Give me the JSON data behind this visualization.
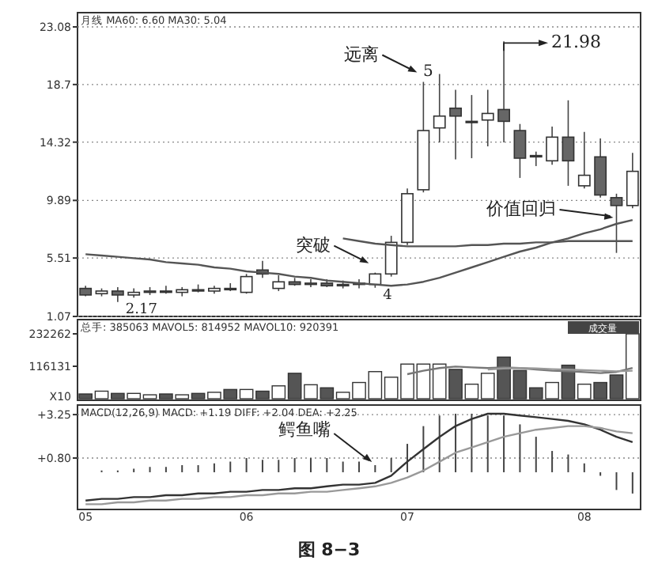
{
  "chart_data": [
    {
      "type": "candlestick",
      "categories": [
        null,
        null,
        null,
        null,
        null,
        null,
        null,
        null,
        null,
        null,
        null,
        null,
        null,
        null,
        null,
        null,
        null,
        null,
        null,
        null,
        null,
        null,
        null,
        null,
        null,
        null,
        null,
        null,
        null,
        null,
        null,
        null,
        null,
        null,
        null
      ],
      "ohlc": [
        [
          3.2,
          3.4,
          2.6,
          2.7
        ],
        [
          2.8,
          3.2,
          2.6,
          3.0
        ],
        [
          3.0,
          3.3,
          2.17,
          2.7
        ],
        [
          2.7,
          3.2,
          2.5,
          2.9
        ],
        [
          2.9,
          3.3,
          2.7,
          3.0
        ],
        [
          3.0,
          3.4,
          2.8,
          2.9
        ],
        [
          2.9,
          3.3,
          2.6,
          3.1
        ],
        [
          3.1,
          3.5,
          2.9,
          3.0
        ],
        [
          3.0,
          3.4,
          2.8,
          3.2
        ],
        [
          3.2,
          3.6,
          3.0,
          3.1
        ],
        [
          2.9,
          4.3,
          2.8,
          4.1
        ],
        [
          4.6,
          5.3,
          4.0,
          4.3
        ],
        [
          3.2,
          4.2,
          3.0,
          3.7
        ],
        [
          3.7,
          4.0,
          3.4,
          3.5
        ],
        [
          3.5,
          3.9,
          3.3,
          3.6
        ],
        [
          3.6,
          3.9,
          3.3,
          3.4
        ],
        [
          3.4,
          3.8,
          3.2,
          3.5
        ],
        [
          3.5,
          3.9,
          3.2,
          3.6
        ],
        [
          3.5,
          4.4,
          3.25,
          4.3
        ],
        [
          4.3,
          7.2,
          4.1,
          6.7
        ],
        [
          6.7,
          10.8,
          6.5,
          10.4
        ],
        [
          10.7,
          18.9,
          10.5,
          15.2
        ],
        [
          15.4,
          19.5,
          14.3,
          16.3
        ],
        [
          16.9,
          18.3,
          13.0,
          16.3
        ],
        [
          15.9,
          17.9,
          13.1,
          15.9
        ],
        [
          16.0,
          18.3,
          14.0,
          16.5
        ],
        [
          16.8,
          21.98,
          14.3,
          15.9
        ],
        [
          15.2,
          15.7,
          11.6,
          13.1
        ],
        [
          13.3,
          13.6,
          12.5,
          13.2
        ],
        [
          12.9,
          15.5,
          12.6,
          14.7
        ],
        [
          14.7,
          17.5,
          11.0,
          12.9
        ],
        [
          11.0,
          15.1,
          10.8,
          11.8
        ],
        [
          13.2,
          14.6,
          10.1,
          10.3
        ],
        [
          10.1,
          10.4,
          5.9,
          9.5
        ],
        [
          9.5,
          13.5,
          9.3,
          12.1
        ]
      ],
      "series": [
        {
          "type": "line",
          "color": "#555555",
          "values": [
            5.8,
            5.7,
            5.6,
            5.5,
            5.4,
            5.2,
            5.1,
            5.0,
            4.8,
            4.7,
            4.5,
            4.4,
            4.3,
            4.1,
            4.0,
            3.8,
            3.7,
            3.6,
            3.5,
            3.4,
            3.5,
            3.7,
            4.0,
            4.4,
            4.8,
            5.2,
            5.6,
            6.0,
            6.3,
            6.7,
            7.0,
            7.4,
            7.7,
            8.1,
            8.4
          ]
        },
        {
          "type": "line",
          "color": "#555555",
          "values": [
            null,
            null,
            null,
            null,
            null,
            null,
            null,
            null,
            null,
            null,
            null,
            null,
            null,
            null,
            null,
            null,
            7.0,
            6.8,
            6.6,
            6.5,
            6.4,
            6.4,
            6.4,
            6.4,
            6.5,
            6.5,
            6.6,
            6.6,
            6.7,
            6.7,
            6.8,
            6.8,
            6.8,
            6.8,
            6.8
          ]
        }
      ],
      "ylim": [
        1.07,
        23.08
      ],
      "yticks": [
        1.07,
        5.51,
        9.89,
        14.32,
        18.7,
        23.08
      ],
      "grid": "y",
      "annotations": [
        "月线  MA60: 6.60  MA30: 5.04",
        {
          "text": "2.17",
          "y": 2.17
        },
        {
          "text": "4",
          "y": 3.25
        },
        "突破",
        {
          "text": "5",
          "y": 18.9
        },
        "远离",
        "21.98",
        "价值回归"
      ]
    },
    {
      "type": "bar",
      "categories": [
        null,
        null,
        null,
        null,
        null,
        null,
        null,
        null,
        null,
        null,
        null,
        null,
        null,
        null,
        null,
        null,
        null,
        null,
        null,
        null,
        null,
        null,
        null,
        null,
        null,
        null,
        null,
        null,
        null,
        null,
        null,
        null,
        null,
        null,
        null
      ],
      "values": [
        17000,
        27000,
        19000,
        19000,
        14000,
        17000,
        14000,
        19000,
        23000,
        33000,
        33000,
        27000,
        46000,
        91000,
        50000,
        39000,
        23000,
        58000,
        97000,
        77000,
        124000,
        124000,
        124000,
        105000,
        52000,
        91000,
        149000,
        101000,
        39000,
        58000,
        120000,
        52000,
        58000,
        85000,
        232262
      ],
      "colors": [
        "#555555",
        "#ffffff",
        "#555555",
        "#ffffff",
        "#ffffff",
        "#555555",
        "#ffffff",
        "#555555",
        "#ffffff",
        "#555555",
        "#ffffff",
        "#555555",
        "#ffffff",
        "#555555",
        "#ffffff",
        "#555555",
        "#ffffff",
        "#ffffff",
        "#ffffff",
        "#ffffff",
        "#ffffff",
        "#ffffff",
        "#ffffff",
        "#555555",
        "#ffffff",
        "#ffffff",
        "#555555",
        "#555555",
        "#555555",
        "#ffffff",
        "#555555",
        "#ffffff",
        "#555555",
        "#555555",
        "#ffffff"
      ],
      "series": [
        {
          "type": "line",
          "color": "#777777",
          "values": [
            null,
            null,
            null,
            null,
            null,
            null,
            null,
            null,
            null,
            null,
            null,
            null,
            null,
            null,
            null,
            null,
            null,
            null,
            null,
            null,
            88000,
            100000,
            110000,
            115000,
            112000,
            110000,
            112000,
            110000,
            105000,
            100000,
            98000,
            95000,
            92000,
            96000,
            110000
          ]
        },
        {
          "type": "line",
          "color": "#999999",
          "values": [
            null,
            null,
            null,
            null,
            null,
            null,
            null,
            null,
            null,
            null,
            null,
            null,
            null,
            null,
            null,
            null,
            null,
            null,
            null,
            null,
            null,
            null,
            null,
            null,
            null,
            105000,
            108000,
            110000,
            108000,
            106000,
            104000,
            102000,
            100000,
            98000,
            100000
          ]
        }
      ],
      "ylim": [
        0,
        232262
      ],
      "yticks": [
        116131,
        232262
      ],
      "annotations": [
        "总手: 385063  MAVOL5: 814952  MAVOL10: 920391",
        "成交量",
        "X10"
      ]
    },
    {
      "type": "bar",
      "categories": [
        "05",
        null,
        null,
        null,
        null,
        null,
        null,
        null,
        null,
        null,
        "06",
        null,
        null,
        null,
        null,
        null,
        null,
        null,
        null,
        null,
        "07",
        null,
        null,
        null,
        null,
        null,
        null,
        null,
        null,
        null,
        null,
        "08",
        null,
        null,
        null
      ],
      "values": [
        0.0,
        0.1,
        0.1,
        0.2,
        0.3,
        0.3,
        0.4,
        0.4,
        0.5,
        0.6,
        0.8,
        0.7,
        0.7,
        0.8,
        0.8,
        0.8,
        0.6,
        0.6,
        0.4,
        0.8,
        1.6,
        2.6,
        3.2,
        3.3,
        3.3,
        3.2,
        3.2,
        2.7,
        2.0,
        1.2,
        1.0,
        0.5,
        -0.2,
        -1.0,
        -1.2
      ],
      "series": [
        {
          "type": "line",
          "color": "#333333",
          "values": [
            -1.6,
            -1.5,
            -1.5,
            -1.4,
            -1.4,
            -1.3,
            -1.3,
            -1.2,
            -1.2,
            -1.1,
            -1.1,
            -1.0,
            -1.0,
            -0.9,
            -0.9,
            -0.8,
            -0.7,
            -0.7,
            -0.6,
            -0.2,
            0.6,
            1.3,
            2.0,
            2.6,
            3.0,
            3.3,
            3.3,
            3.2,
            3.1,
            3.0,
            2.9,
            2.7,
            2.4,
            2.0,
            1.7
          ]
        },
        {
          "type": "line",
          "color": "#999999",
          "values": [
            -1.8,
            -1.8,
            -1.7,
            -1.7,
            -1.6,
            -1.6,
            -1.5,
            -1.5,
            -1.4,
            -1.4,
            -1.3,
            -1.3,
            -1.2,
            -1.2,
            -1.1,
            -1.1,
            -1.0,
            -0.9,
            -0.8,
            -0.6,
            -0.3,
            0.1,
            0.6,
            1.1,
            1.4,
            1.7,
            2.0,
            2.2,
            2.4,
            2.5,
            2.6,
            2.6,
            2.5,
            2.3,
            2.2
          ]
        }
      ],
      "ylim": [
        -1.92,
        3.7
      ],
      "yticks": [
        {
          "value": 3.25,
          "label": "+3.25"
        },
        {
          "value": 0.8,
          "label": "+0.80"
        }
      ],
      "grid": "y",
      "annotations": [
        "MACD(12,26,9)  MACD: +1.19  DIFF: +2.04  DEA: +2.25",
        {
          "text": "鳄鱼嘴",
          "y": 0.4
        },
        "图 8−3"
      ]
    }
  ]
}
